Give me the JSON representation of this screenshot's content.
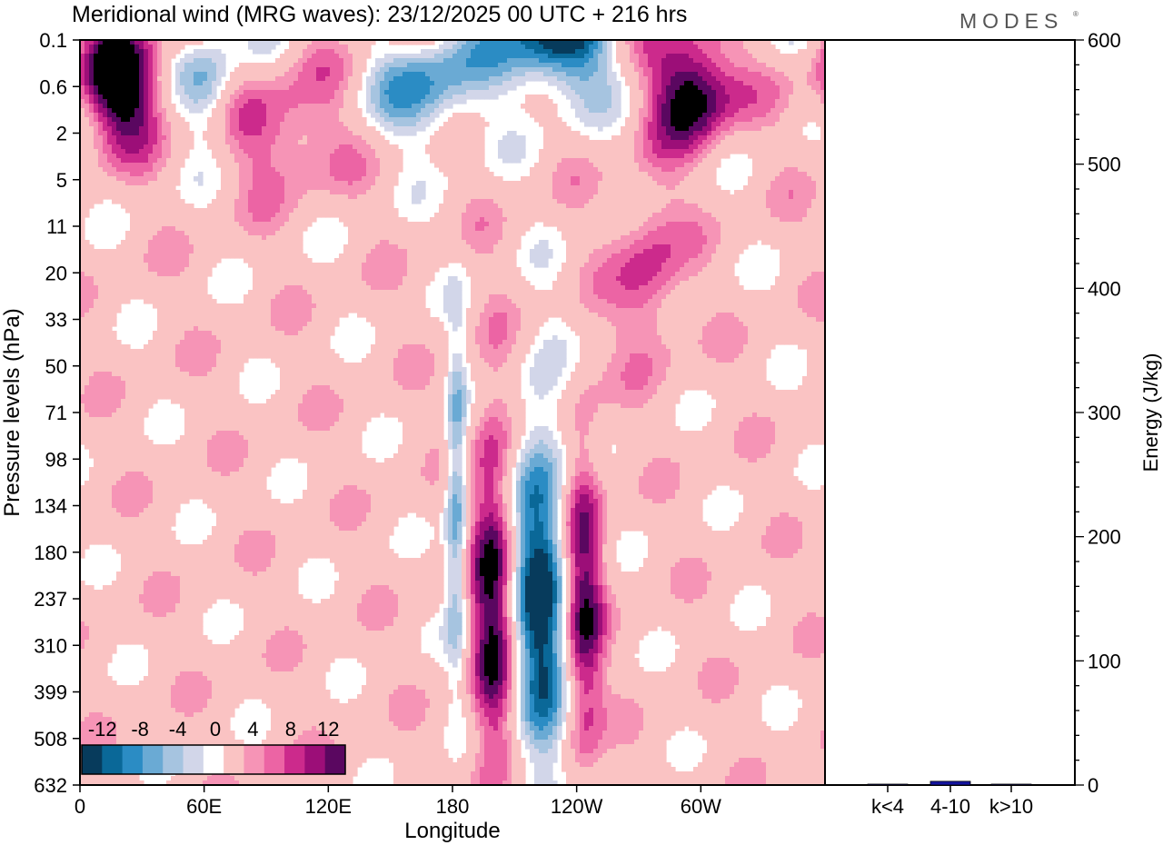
{
  "chart_data": [
    {
      "type": "heatmap",
      "title": "Meridional wind (MRG waves):  23/12/2025  00 UTC  + 216 hrs",
      "xlabel": "Longitude",
      "ylabel": "Pressure levels (hPa)",
      "x_ticks": [
        "0",
        "60E",
        "120E",
        "180",
        "120W",
        "60W"
      ],
      "x_tick_degrees": [
        0,
        60,
        120,
        180,
        240,
        300
      ],
      "x_range": [
        0,
        360
      ],
      "y_ticks": [
        "0.1",
        "0.6",
        "2",
        "5",
        "11",
        "20",
        "33",
        "50",
        "71",
        "98",
        "134",
        "180",
        "237",
        "310",
        "399",
        "508",
        "632"
      ],
      "colorbar": {
        "labels": [
          "-12",
          "-8",
          "-4",
          "0",
          "4",
          "8",
          "12"
        ],
        "levels": [
          -14,
          -12,
          -10,
          -8,
          -6,
          -4,
          -2,
          2,
          4,
          6,
          8,
          10,
          12,
          14
        ],
        "colors": [
          "#073b5c",
          "#0a6898",
          "#2b8cc4",
          "#6aaad4",
          "#a6c4e0",
          "#d2d6e9",
          "#ffffff",
          "#fac3c3",
          "#f694b6",
          "#ec64a4",
          "#cc2a8c",
          "#9c0e78",
          "#5a0760"
        ]
      },
      "features": [
        {
          "lon": 200,
          "level": "237",
          "value": 13,
          "lon_width": 8,
          "level_span": [
            "98",
            "632"
          ]
        },
        {
          "lon": 222,
          "level": "237",
          "value": -16,
          "lon_width": 10,
          "level_span": [
            "98",
            "632"
          ]
        },
        {
          "lon": 243,
          "level": "237",
          "value": 12,
          "lon_width": 7,
          "level_span": [
            "98",
            "508"
          ]
        },
        {
          "lon": 182,
          "level": "134",
          "value": -10,
          "lon_width": 4,
          "level_span": [
            "71",
            "399"
          ]
        },
        {
          "lon": 20,
          "level": "0.6",
          "value": 16,
          "lon_width": 14,
          "level_span": [
            "0.1",
            "2"
          ]
        },
        {
          "lon": 62,
          "level": "0.6",
          "value": -8,
          "lon_width": 10,
          "level_span": [
            "0.1",
            "2"
          ]
        },
        {
          "lon": 168,
          "level": "0.6",
          "value": -10,
          "lon_width": 18,
          "level_span": [
            "0.1",
            "2"
          ]
        },
        {
          "lon": 230,
          "level": "0.1",
          "value": -16,
          "lon_width": 20,
          "level_span": [
            "0.1",
            "2"
          ]
        },
        {
          "lon": 296,
          "level": "0.6",
          "value": 16,
          "lon_width": 14,
          "level_span": [
            "0.1",
            "2"
          ]
        },
        {
          "lon": 98,
          "level": "2",
          "value": 7,
          "lon_width": 20,
          "level_span": [
            "0.6",
            "5"
          ]
        },
        {
          "lon": 275,
          "level": "20",
          "value": 7,
          "lon_width": 12,
          "level_span": [
            "5",
            "33"
          ]
        }
      ]
    },
    {
      "type": "bar",
      "categories": [
        "k<4",
        "4-10",
        "k>10"
      ],
      "values": [
        0.5,
        3,
        0.5
      ],
      "ylabel": "Energy (J/kg)",
      "ylim": [
        0,
        600
      ],
      "y_ticks": [
        "0",
        "100",
        "200",
        "300",
        "400",
        "500",
        "600"
      ],
      "bar_color": "#1414a0"
    }
  ],
  "logo": "MODES",
  "logo_mark": "®"
}
